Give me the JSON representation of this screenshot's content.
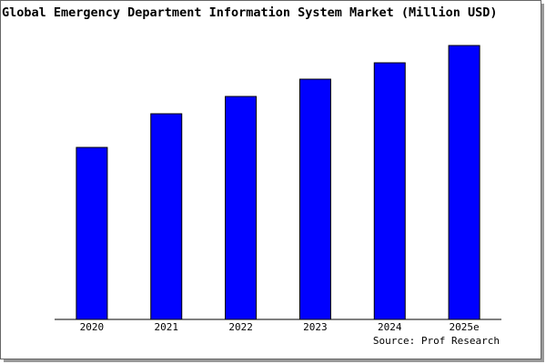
{
  "chart_data": {
    "type": "bar",
    "title": "Global Emergency Department Information System Market (Million USD)",
    "categories": [
      "2020",
      "2021",
      "2022",
      "2023",
      "2024",
      "2025e"
    ],
    "values": [
      189,
      226,
      245,
      264,
      282,
      301
    ],
    "color": "#0000ff",
    "ylim": [
      0,
      301
    ],
    "source": "Source: Prof Research"
  }
}
